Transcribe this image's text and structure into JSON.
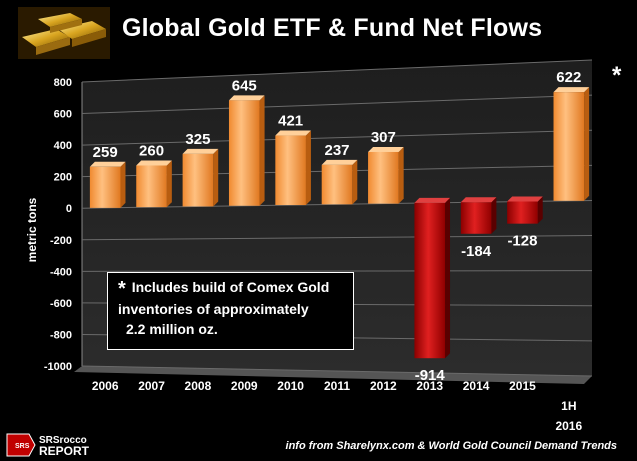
{
  "header": {
    "title": "Global Gold ETF & Fund Net Flows",
    "icon": "gold-bars-icon"
  },
  "chart_data": {
    "type": "bar",
    "title": "Global Gold ETF & Fund Net Flows",
    "xlabel": "",
    "ylabel": "metric tons",
    "ylim": [
      -1000,
      800
    ],
    "yticks": [
      800,
      600,
      400,
      200,
      0,
      -200,
      -400,
      -600,
      -800,
      -1000
    ],
    "categories": [
      "2006",
      "2007",
      "2008",
      "2009",
      "2010",
      "2011",
      "2012",
      "2013",
      "2014",
      "2015",
      "1H 2016"
    ],
    "values": [
      259,
      260,
      325,
      645,
      421,
      237,
      307,
      -914,
      -184,
      -128,
      622
    ],
    "data_labels": [
      "259",
      "260",
      "325",
      "645",
      "421",
      "237",
      "307",
      "-914",
      "-184",
      "-128",
      "622"
    ],
    "colors": {
      "positive": "#F5A050",
      "negative": "#C00000"
    },
    "grid": true,
    "legend": "none",
    "annotation_marker": "*"
  },
  "note": {
    "star": "*",
    "lines": [
      "Includes build of Comex Gold",
      "inventories of approximately",
      "2.2 million oz."
    ]
  },
  "footer": {
    "logo_top": "SRSrocco",
    "logo_bottom": "REPORT",
    "source": "info from Sharelynx.com & World Gold Council Demand Trends"
  }
}
